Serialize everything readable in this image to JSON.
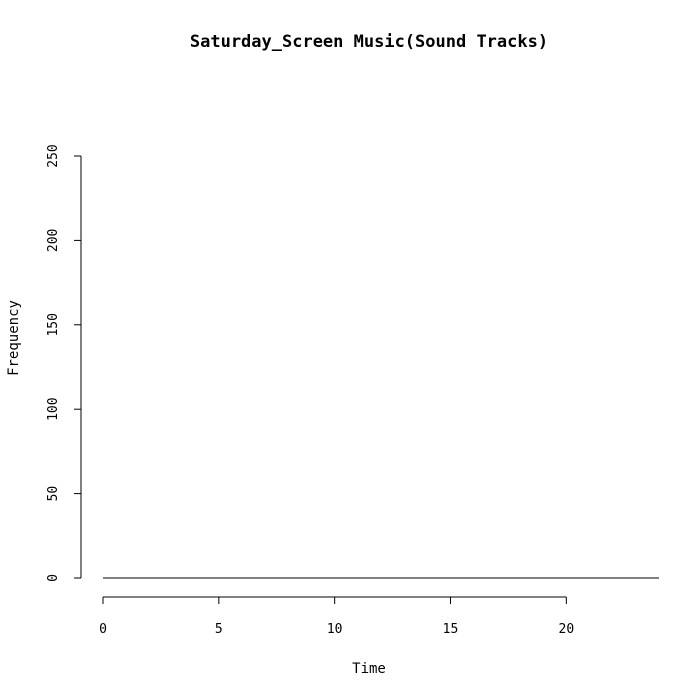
{
  "chart_data": {
    "type": "line",
    "title": "Saturday_Screen Music(Sound Tracks)",
    "xlabel": "Time",
    "ylabel": "Frequency",
    "xlim": [
      0,
      24
    ],
    "ylim": [
      0,
      250
    ],
    "x_ticks": [
      0,
      5,
      10,
      15,
      20
    ],
    "y_ticks": [
      0,
      50,
      100,
      150,
      200,
      250
    ],
    "grid": false,
    "series": [
      {
        "x": [
          0,
          1,
          2,
          3,
          4,
          5,
          6,
          7,
          8,
          9,
          10,
          11,
          12,
          13,
          14,
          15,
          16,
          17,
          18,
          19,
          20,
          21,
          22,
          23,
          24
        ],
        "values": [
          0,
          0,
          0,
          0,
          0,
          0,
          0,
          0,
          0,
          0,
          0,
          0,
          0,
          0,
          0,
          0,
          0,
          0,
          0,
          0,
          0,
          0,
          0,
          0,
          0
        ]
      }
    ],
    "colors": {
      "line": "#000000",
      "background": "#ffffff"
    }
  }
}
